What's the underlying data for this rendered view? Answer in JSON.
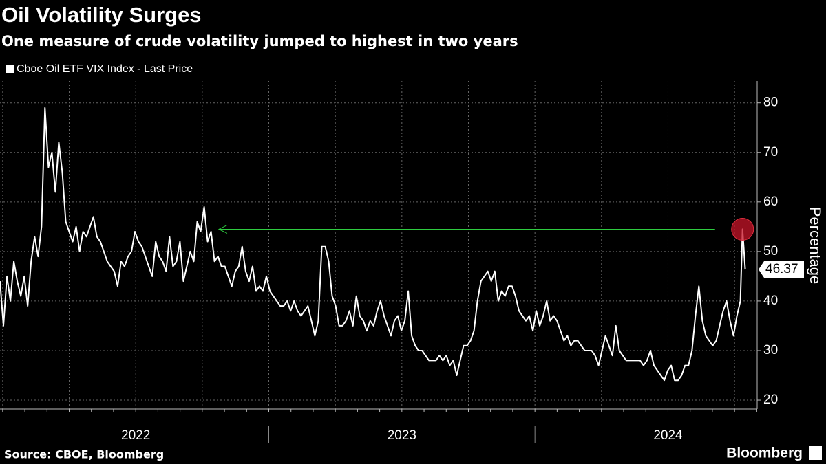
{
  "chart_data": {
    "type": "line",
    "title": "Oil Volatility Surges",
    "subtitle": "One measure of crude volatility jumped to highest in two years",
    "y_label": "Percentage",
    "source": "Source: CBOE, Bloomberg",
    "brand": "Bloomberg",
    "xlim": [
      2021.99,
      2024.835
    ],
    "xticks": [
      {
        "value": 2022.5,
        "label": "2022"
      },
      {
        "value": 2023.5,
        "label": "2023"
      },
      {
        "value": 2024.5,
        "label": "2024"
      }
    ],
    "ylim": [
      18.2,
      84.4
    ],
    "yticks": [
      20,
      30,
      40,
      50,
      60,
      70,
      80
    ],
    "grid": true,
    "x": [
      2021.99,
      2022.003,
      2022.016,
      2022.029,
      2022.042,
      2022.055,
      2022.068,
      2022.081,
      2022.094,
      2022.107,
      2022.12,
      2022.133,
      2022.146,
      2022.159,
      2022.172,
      2022.185,
      2022.198,
      2022.211,
      2022.224,
      2022.237,
      2022.25,
      2022.263,
      2022.276,
      2022.289,
      2022.302,
      2022.315,
      2022.328,
      2022.341,
      2022.354,
      2022.367,
      2022.38,
      2022.393,
      2022.406,
      2022.419,
      2022.432,
      2022.445,
      2022.458,
      2022.471,
      2022.484,
      2022.497,
      2022.51,
      2022.523,
      2022.536,
      2022.549,
      2022.562,
      2022.575,
      2022.588,
      2022.601,
      2022.614,
      2022.627,
      2022.64,
      2022.653,
      2022.666,
      2022.679,
      2022.692,
      2022.705,
      2022.718,
      2022.731,
      2022.744,
      2022.757,
      2022.77,
      2022.783,
      2022.796,
      2022.809,
      2022.822,
      2022.835,
      2022.848,
      2022.861,
      2022.874,
      2022.887,
      2022.9,
      2022.913,
      2022.926,
      2022.939,
      2022.952,
      2022.965,
      2022.978,
      2022.991,
      2023.004,
      2023.017,
      2023.03,
      2023.043,
      2023.056,
      2023.069,
      2023.082,
      2023.095,
      2023.108,
      2023.121,
      2023.134,
      2023.147,
      2023.16,
      2023.173,
      2023.186,
      2023.199,
      2023.212,
      2023.225,
      2023.238,
      2023.251,
      2023.264,
      2023.277,
      2023.29,
      2023.303,
      2023.316,
      2023.329,
      2023.342,
      2023.355,
      2023.368,
      2023.381,
      2023.394,
      2023.407,
      2023.42,
      2023.433,
      2023.446,
      2023.459,
      2023.472,
      2023.485,
      2023.498,
      2023.511,
      2023.524,
      2023.537,
      2023.55,
      2023.563,
      2023.576,
      2023.589,
      2023.602,
      2023.615,
      2023.628,
      2023.641,
      2023.654,
      2023.667,
      2023.68,
      2023.693,
      2023.706,
      2023.719,
      2023.732,
      2023.745,
      2023.758,
      2023.771,
      2023.784,
      2023.797,
      2023.81,
      2023.823,
      2023.836,
      2023.849,
      2023.862,
      2023.875,
      2023.888,
      2023.901,
      2023.914,
      2023.927,
      2023.94,
      2023.953,
      2023.966,
      2023.979,
      2023.992,
      2024.005,
      2024.018,
      2024.031,
      2024.044,
      2024.057,
      2024.07,
      2024.083,
      2024.096,
      2024.109,
      2024.122,
      2024.135,
      2024.148,
      2024.161,
      2024.174,
      2024.187,
      2024.2,
      2024.213,
      2024.226,
      2024.239,
      2024.252,
      2024.265,
      2024.278,
      2024.291,
      2024.304,
      2024.317,
      2024.33,
      2024.343,
      2024.356,
      2024.369,
      2024.382,
      2024.395,
      2024.408,
      2024.421,
      2024.434,
      2024.447,
      2024.46,
      2024.473,
      2024.486,
      2024.499,
      2024.512,
      2024.525,
      2024.538,
      2024.551,
      2024.564,
      2024.577,
      2024.59,
      2024.603,
      2024.616,
      2024.629,
      2024.642,
      2024.655,
      2024.668,
      2024.681,
      2024.694,
      2024.707,
      2024.72,
      2024.733,
      2024.746,
      2024.759,
      2024.772,
      2024.78,
      2024.79
    ],
    "series": [
      {
        "name": "Cboe Oil ETF VIX Index - Last Price",
        "color": "#ffffff",
        "values": [
          44,
          35,
          45,
          40,
          48,
          44,
          41,
          45,
          39,
          48,
          53,
          49,
          55,
          79,
          67,
          70,
          62,
          72,
          66,
          56,
          54,
          52,
          55,
          50,
          54,
          53,
          55,
          57,
          53,
          52,
          50,
          48,
          47,
          46,
          43,
          48,
          47,
          49,
          50,
          54,
          52,
          51,
          49,
          47,
          45,
          52,
          49,
          48,
          46,
          53,
          47,
          48,
          52,
          44,
          47,
          50,
          48,
          56,
          54,
          59,
          52,
          54,
          48,
          49,
          47,
          47,
          45,
          43,
          46,
          47,
          51,
          46,
          44,
          47,
          42,
          43,
          42,
          45,
          42,
          41,
          40,
          39,
          39,
          40,
          38,
          40,
          38,
          37,
          38,
          39,
          36,
          33,
          36,
          51,
          51,
          48,
          41,
          39,
          35,
          35,
          36,
          38,
          35,
          41,
          37,
          36,
          34,
          36,
          35,
          38,
          40,
          37,
          35,
          33,
          36,
          37,
          34,
          36,
          42,
          33,
          31,
          30,
          30,
          29,
          28,
          28,
          28,
          29,
          28,
          29,
          27,
          28,
          25,
          28,
          31,
          31,
          32,
          34,
          40,
          44,
          45,
          46,
          44,
          46,
          40,
          42,
          41,
          43,
          43,
          41,
          38,
          37,
          36,
          37,
          34,
          38,
          35,
          37,
          40,
          36,
          37,
          36,
          34,
          32,
          33,
          31,
          32,
          32,
          31,
          30,
          30,
          30,
          29,
          27,
          30,
          33,
          31,
          29,
          35,
          30,
          29,
          28,
          28,
          28,
          28,
          28,
          27,
          28,
          30,
          27,
          26,
          25,
          24,
          26,
          27,
          24,
          24,
          25,
          27,
          27,
          30,
          37,
          43,
          36,
          33,
          32,
          31,
          32,
          35,
          38,
          40,
          36,
          33,
          37,
          40,
          54.5,
          46.37
        ]
      }
    ]
  }
}
